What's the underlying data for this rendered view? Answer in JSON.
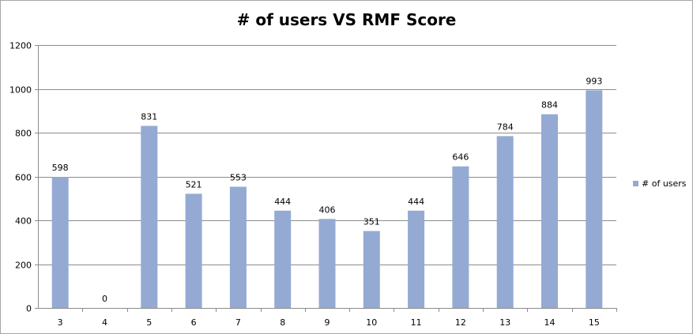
{
  "chart_data": {
    "type": "bar",
    "title": "# of users VS RMF Score",
    "xlabel": "",
    "ylabel": "",
    "categories": [
      "3",
      "4",
      "5",
      "6",
      "7",
      "8",
      "9",
      "10",
      "11",
      "12",
      "13",
      "14",
      "15"
    ],
    "series": [
      {
        "name": "# of users",
        "values": [
          598,
          0,
          831,
          521,
          553,
          444,
          406,
          351,
          444,
          646,
          784,
          884,
          993
        ],
        "color": "#95aad3"
      }
    ],
    "ylim": [
      0,
      1200
    ],
    "yticks": [
      0,
      200,
      400,
      600,
      800,
      1000,
      1200
    ],
    "grid": "horizontal",
    "legend_position": "right",
    "data_labels": true
  }
}
